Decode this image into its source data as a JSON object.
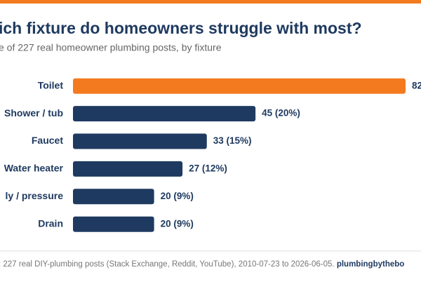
{
  "chart_data": {
    "type": "bar",
    "orientation": "horizontal",
    "title": "ich fixture do homeowners struggle with most?",
    "subtitle": "e of 227 real homeowner plumbing posts, by fixture",
    "categories": [
      "Toilet",
      "Shower / tub",
      "Faucet",
      "Water heater",
      "ly / pressure",
      "Drain"
    ],
    "values": [
      82,
      45,
      33,
      27,
      20,
      20
    ],
    "value_labels": [
      "82",
      "45 (20%)",
      "33 (15%)",
      "27 (12%)",
      "20 (9%)",
      "20 (9%)"
    ],
    "colors": [
      "#f47a1f",
      "#1f3a60",
      "#1f3a60",
      "#1f3a60",
      "#1f3a60",
      "#1f3a60"
    ],
    "footer": ": 227 real DIY-plumbing posts (Stack Exchange, Reddit, YouTube), 2010-07-23 to 2026-06-05.",
    "footer_source": "plumbingbythebo"
  }
}
